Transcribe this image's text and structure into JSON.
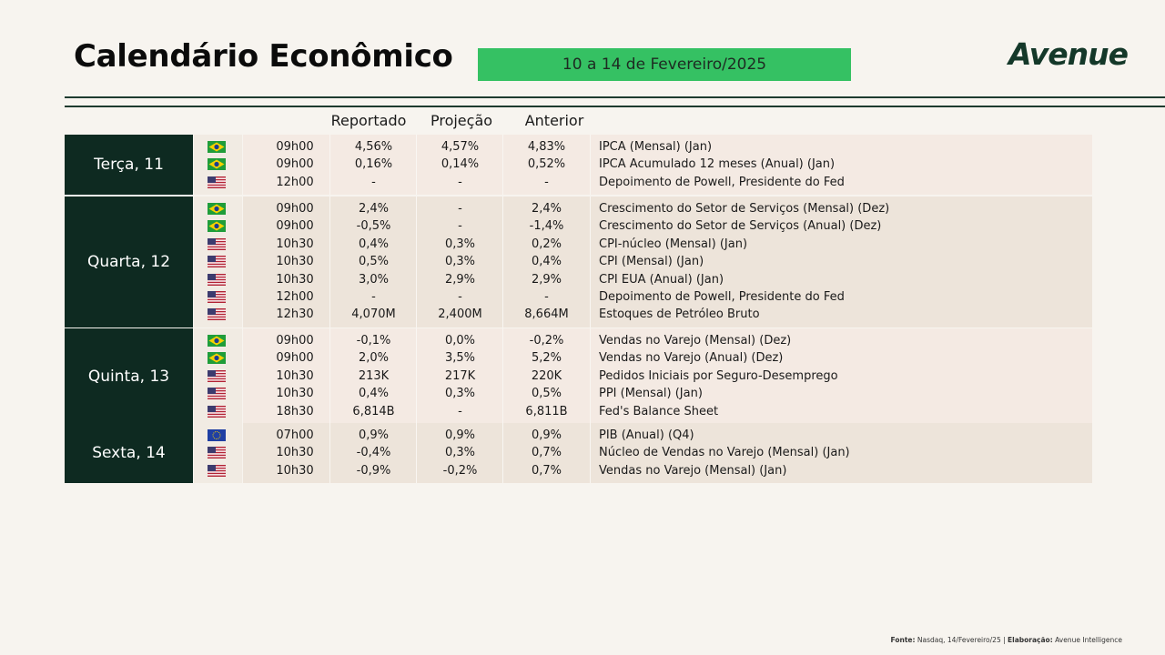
{
  "header": {
    "title": "Calendário Econômico",
    "date_range": "10 a 14 de Fevereiro/2025",
    "logo": "Avenue"
  },
  "columns": {
    "reported": "Reportado",
    "projection": "Projeção",
    "previous": "Anterior"
  },
  "days": [
    {
      "label": "Terça, 11",
      "rows": [
        {
          "flag": "br-flag-icon",
          "time": "09h00",
          "reported": "4,56%",
          "projection": "4,57%",
          "previous": "4,83%",
          "event": "IPCA (Mensal) (Jan)"
        },
        {
          "flag": "br-flag-icon",
          "time": "09h00",
          "reported": "0,16%",
          "projection": "0,14%",
          "previous": "0,52%",
          "event": "IPCA Acumulado 12 meses (Anual) (Jan)"
        },
        {
          "flag": "us-flag-icon",
          "time": "12h00",
          "reported": "-",
          "projection": "-",
          "previous": "-",
          "event": "Depoimento de Powell, Presidente do Fed"
        }
      ]
    },
    {
      "label": "Quarta, 12",
      "rows": [
        {
          "flag": "br-flag-icon",
          "time": "09h00",
          "reported": "2,4%",
          "projection": "-",
          "previous": "2,4%",
          "event": "Crescimento do Setor de Serviços (Mensal) (Dez)"
        },
        {
          "flag": "br-flag-icon",
          "time": "09h00",
          "reported": "-0,5%",
          "projection": "-",
          "previous": "-1,4%",
          "event": "Crescimento do Setor de Serviços (Anual) (Dez)"
        },
        {
          "flag": "us-flag-icon",
          "time": "10h30",
          "reported": "0,4%",
          "projection": "0,3%",
          "previous": "0,2%",
          "event": "CPI-núcleo (Mensal) (Jan)"
        },
        {
          "flag": "us-flag-icon",
          "time": "10h30",
          "reported": "0,5%",
          "projection": "0,3%",
          "previous": "0,4%",
          "event": "CPI (Mensal) (Jan)"
        },
        {
          "flag": "us-flag-icon",
          "time": "10h30",
          "reported": "3,0%",
          "projection": "2,9%",
          "previous": "2,9%",
          "event": "CPI EUA (Anual) (Jan)"
        },
        {
          "flag": "us-flag-icon",
          "time": "12h00",
          "reported": "-",
          "projection": "-",
          "previous": "-",
          "event": "Depoimento de Powell, Presidente do Fed"
        },
        {
          "flag": "us-flag-icon",
          "time": "12h30",
          "reported": "4,070M",
          "projection": "2,400M",
          "previous": "8,664M",
          "event": "Estoques de Petróleo Bruto"
        }
      ]
    },
    {
      "label": "Quinta, 13",
      "rows": [
        {
          "flag": "br-flag-icon",
          "time": "09h00",
          "reported": "-0,1%",
          "projection": "0,0%",
          "previous": "-0,2%",
          "event": "Vendas no Varejo (Mensal) (Dez)"
        },
        {
          "flag": "br-flag-icon",
          "time": "09h00",
          "reported": "2,0%",
          "projection": "3,5%",
          "previous": "5,2%",
          "event": "Vendas no Varejo (Anual) (Dez)"
        },
        {
          "flag": "us-flag-icon",
          "time": "10h30",
          "reported": "213K",
          "projection": "217K",
          "previous": "220K",
          "event": "Pedidos Iniciais por Seguro-Desemprego"
        },
        {
          "flag": "us-flag-icon",
          "time": "10h30",
          "reported": "0,4%",
          "projection": "0,3%",
          "previous": "0,5%",
          "event": "PPI (Mensal) (Jan)"
        },
        {
          "flag": "us-flag-icon",
          "time": "18h30",
          "reported": "6,814B",
          "projection": "-",
          "previous": "6,811B",
          "event": "Fed's Balance Sheet"
        }
      ]
    },
    {
      "label": "Sexta, 14",
      "rows": [
        {
          "flag": "eu-flag-icon",
          "time": "07h00",
          "reported": "0,9%",
          "projection": "0,9%",
          "previous": "0,9%",
          "event": "PIB (Anual) (Q4)"
        },
        {
          "flag": "us-flag-icon",
          "time": "10h30",
          "reported": "-0,4%",
          "projection": "0,3%",
          "previous": "0,7%",
          "event": "Núcleo de Vendas no Varejo (Mensal) (Jan)"
        },
        {
          "flag": "us-flag-icon",
          "time": "10h30",
          "reported": "-0,9%",
          "projection": "-0,2%",
          "previous": "0,7%",
          "event": "Vendas no Varejo (Mensal) (Jan)"
        }
      ]
    }
  ],
  "footnote": {
    "source_label": "Fonte:",
    "source_text": " Nasdaq, 14/Fevereiro/25 | ",
    "author_label": "Elaboração:",
    "author_text": " Avenue Intelligence"
  },
  "colors": {
    "day_bg": "#0e2a21",
    "banner_green": "#35c163",
    "logo_green": "#143829"
  }
}
